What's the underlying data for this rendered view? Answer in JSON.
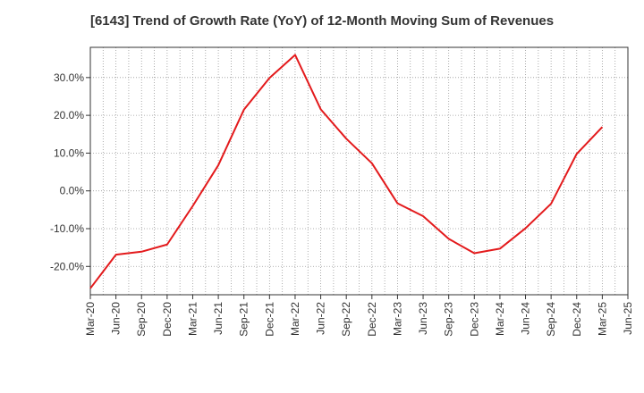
{
  "chart_data": {
    "type": "line",
    "title": "[6143]  Trend of Growth Rate (YoY) of 12-Month Moving Sum of Revenues",
    "xlabel": "",
    "ylabel": "",
    "x_ticks": [
      "Mar-20",
      "Jun-20",
      "Sep-20",
      "Dec-20",
      "Mar-21",
      "Jun-21",
      "Sep-21",
      "Dec-21",
      "Mar-22",
      "Jun-22",
      "Sep-22",
      "Dec-22",
      "Mar-23",
      "Jun-23",
      "Sep-23",
      "Dec-23",
      "Mar-24",
      "Jun-24",
      "Sep-24",
      "Dec-24",
      "Mar-25",
      "Jun-25"
    ],
    "y_ticks": [
      "30.0%",
      "20.0%",
      "10.0%",
      "0.0%",
      "-10.0%",
      "-20.0%"
    ],
    "y_tick_values": [
      30,
      20,
      10,
      0,
      -10,
      -20
    ],
    "ylim": [
      -27.5,
      38
    ],
    "grid": true,
    "series": [
      {
        "color": "#e31a1c",
        "x": [
          "Mar-20",
          "Jun-20",
          "Sep-20",
          "Dec-20",
          "Mar-21",
          "Jun-21",
          "Sep-21",
          "Dec-21",
          "Mar-22",
          "Jun-22",
          "Sep-22",
          "Dec-22",
          "Mar-23",
          "Jun-23",
          "Sep-23",
          "Dec-23",
          "Mar-24",
          "Jun-24",
          "Sep-24",
          "Dec-24",
          "Mar-25"
        ],
        "values": [
          -25.8,
          -16.9,
          -16.1,
          -14.2,
          -4.0,
          6.8,
          21.5,
          29.9,
          36.0,
          21.6,
          13.8,
          7.3,
          -3.3,
          -6.7,
          -12.7,
          -16.5,
          -15.3,
          -9.9,
          -3.4,
          9.8,
          16.9
        ]
      }
    ]
  }
}
